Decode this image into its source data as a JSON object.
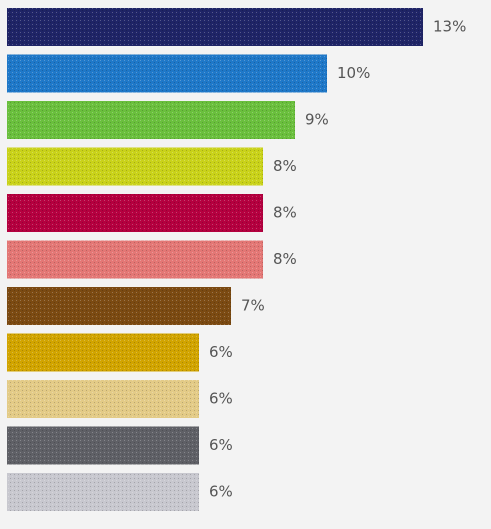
{
  "chart_data": {
    "type": "bar",
    "orientation": "horizontal",
    "title": "",
    "xlabel": "",
    "ylabel": "",
    "value_unit": "%",
    "xlim": [
      0,
      13
    ],
    "grid": false,
    "legend": "none",
    "background_color": "#f3f3f3",
    "label_color": "#555555",
    "values": [
      13,
      10,
      9,
      8,
      8,
      8,
      7,
      6,
      6,
      6,
      6
    ],
    "labels": [
      "13%",
      "10%",
      "9%",
      "8%",
      "8%",
      "8%",
      "7%",
      "6%",
      "6%",
      "6%",
      "6%"
    ],
    "colors": [
      "#1f2466",
      "#1f78c8",
      "#6abf3d",
      "#c9d21a",
      "#b4003f",
      "#e37775",
      "#7b4a12",
      "#d1a400",
      "#e3cb87",
      "#5f6066",
      "#c8c8cf"
    ]
  }
}
